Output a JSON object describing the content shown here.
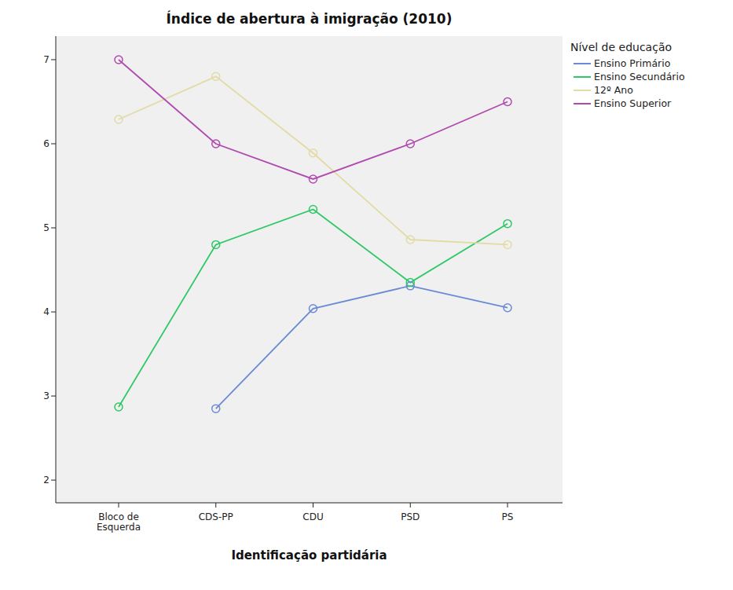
{
  "chart_data": {
    "type": "line",
    "title": "Índice de abertura à imigração (2010)",
    "x_label": "Identificação partidária",
    "legend_title": "Nível de educação",
    "categories": [
      "Bloco de Esquerda",
      "CDS-PP",
      "CDU",
      "PSD",
      "PS"
    ],
    "series": [
      {
        "name": "Ensino Primário",
        "color": "#6a8ad6",
        "values": [
          null,
          2.85,
          4.04,
          4.31,
          4.05
        ]
      },
      {
        "name": "Ensino Secundário",
        "color": "#2ec866",
        "values": [
          2.87,
          4.8,
          5.22,
          4.35,
          5.05
        ]
      },
      {
        "name": "12º Ano",
        "color": "#e2dba6",
        "values": [
          6.29,
          6.8,
          5.89,
          4.86,
          4.8
        ]
      },
      {
        "name": "Ensino Superior",
        "color": "#b04ab0",
        "values": [
          7.0,
          6.0,
          5.58,
          6.0,
          6.5
        ]
      }
    ],
    "ylim": [
      1.73,
      7.28
    ],
    "yticks": [
      2,
      3,
      4,
      5,
      6,
      7
    ],
    "grid": false,
    "legend": "right",
    "marker": "circle"
  }
}
